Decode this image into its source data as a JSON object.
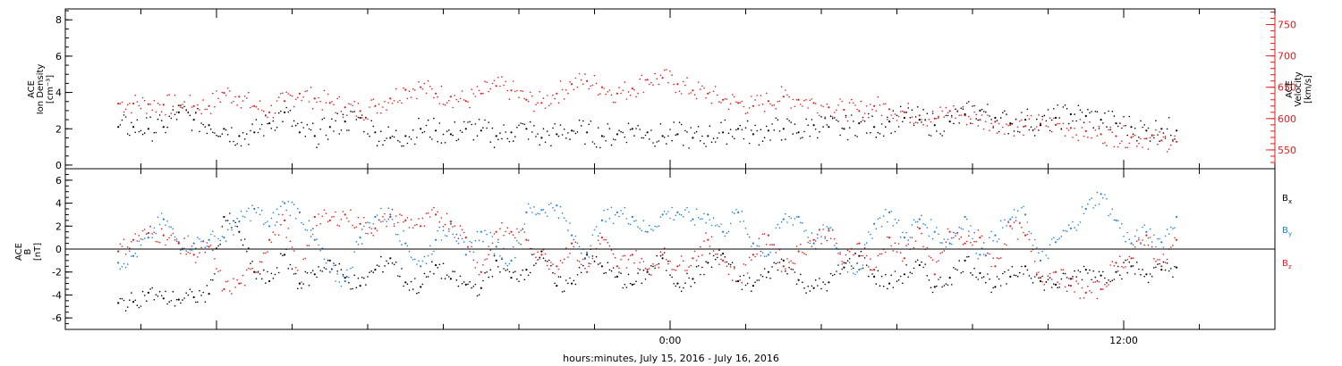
{
  "colors": {
    "axis": "#000000",
    "density": "#000000",
    "velocity": "#e8191c",
    "bx": "#000000",
    "by": "#1e7fd8",
    "bz": "#e8191c"
  },
  "x_axis": {
    "label": "hours:minutes, July 15, 2016 - July 16, 2016",
    "range_hours": [
      -16,
      16
    ],
    "tick_labels": [
      {
        "hour": 0,
        "label": "0:00"
      },
      {
        "hour": 12,
        "label": "12:00"
      }
    ],
    "minor_tick_step_hours": 2
  },
  "chart_data": [
    {
      "type": "scatter",
      "panel": "top",
      "left_axis": {
        "label_line1": "ACE",
        "label_line2": "Ion Density",
        "label_line3": "[cm⁻³]",
        "ylim": [
          -0.2,
          8.6
        ],
        "ticks": [
          0,
          2,
          4,
          6,
          8
        ]
      },
      "right_axis": {
        "label_line1": "ACE",
        "label_line2": "Velocity",
        "label_line3": "[km/s]",
        "ylim": [
          520,
          775
        ],
        "ticks": [
          550,
          600,
          650,
          700,
          750
        ]
      },
      "series": [
        {
          "name": "density",
          "axis": "left",
          "x": [
            -14.6,
            -14.2,
            -13.8,
            -13.4,
            -13.0,
            -12.6,
            -12.2,
            -11.8,
            -11.4,
            -11.0,
            -10.6,
            -10.2,
            -9.8,
            -9.4,
            -9.0,
            -8.6,
            -8.2,
            -7.8,
            -7.4,
            -7.0,
            -6.6,
            -6.2,
            -5.8,
            -5.4,
            -5.0,
            -4.6,
            -4.2,
            -3.8,
            -3.4,
            -3.0,
            -2.6,
            -2.2,
            -1.8,
            -1.4,
            -1.0,
            -0.6,
            -0.2,
            0.2,
            0.6,
            1.0,
            1.4,
            1.8,
            2.2,
            2.6,
            3.0,
            3.4,
            3.8,
            4.2,
            4.6,
            5.0,
            5.4,
            5.8,
            6.2,
            6.6,
            7.0,
            7.4,
            7.8,
            8.2,
            8.6,
            9.0,
            9.4,
            9.8,
            10.2,
            10.6,
            11.0,
            11.4,
            11.8,
            12.2,
            12.6,
            13.0,
            13.4
          ],
          "values": [
            2.1,
            2.1,
            2.0,
            2.1,
            2.9,
            2.5,
            2.2,
            2.0,
            1.6,
            1.8,
            2.3,
            2.9,
            1.8,
            1.6,
            2.1,
            2.4,
            2.6,
            1.8,
            1.5,
            1.6,
            2.0,
            1.9,
            1.7,
            2.0,
            1.9,
            1.6,
            1.8,
            2.0,
            1.5,
            1.7,
            1.9,
            1.8,
            1.6,
            1.7,
            2.0,
            1.8,
            1.6,
            1.7,
            1.5,
            1.6,
            1.8,
            2.0,
            1.7,
            1.9,
            2.0,
            1.8,
            2.2,
            2.1,
            2.0,
            2.3,
            2.1,
            2.4,
            2.6,
            2.5,
            2.2,
            2.4,
            2.8,
            3.0,
            2.6,
            2.3,
            2.5,
            2.2,
            2.6,
            2.8,
            2.7,
            2.5,
            2.3,
            2.1,
            1.9,
            2.0,
            1.9
          ]
        },
        {
          "name": "velocity",
          "axis": "right",
          "x": [
            -14.6,
            -14.2,
            -13.8,
            -13.4,
            -13.0,
            -12.6,
            -12.2,
            -11.8,
            -11.4,
            -11.0,
            -10.6,
            -10.2,
            -9.8,
            -9.4,
            -9.0,
            -8.6,
            -8.2,
            -7.8,
            -7.4,
            -7.0,
            -6.6,
            -6.2,
            -5.8,
            -5.4,
            -5.0,
            -4.6,
            -4.2,
            -3.8,
            -3.4,
            -3.0,
            -2.6,
            -2.2,
            -1.8,
            -1.4,
            -1.0,
            -0.6,
            -0.2,
            0.2,
            0.6,
            1.0,
            1.4,
            1.8,
            2.2,
            2.6,
            3.0,
            3.4,
            3.8,
            4.2,
            4.6,
            5.0,
            5.4,
            5.8,
            6.2,
            6.6,
            7.0,
            7.4,
            7.8,
            8.2,
            8.6,
            9.0,
            9.4,
            9.8,
            10.2,
            10.6,
            11.0,
            11.4,
            11.8,
            12.2,
            12.6,
            13.0,
            13.4
          ],
          "values": [
            624,
            624,
            623,
            622,
            621,
            620,
            620,
            641,
            635,
            620,
            610,
            628,
            640,
            632,
            625,
            618,
            612,
            620,
            632,
            646,
            650,
            640,
            635,
            628,
            640,
            652,
            645,
            630,
            625,
            640,
            655,
            660,
            650,
            640,
            648,
            662,
            665,
            655,
            645,
            640,
            630,
            625,
            620,
            628,
            635,
            630,
            625,
            618,
            614,
            612,
            620,
            615,
            610,
            605,
            600,
            612,
            605,
            598,
            595,
            590,
            588,
            592,
            590,
            585,
            580,
            575,
            572,
            570,
            568,
            565,
            563
          ]
        }
      ]
    },
    {
      "type": "scatter",
      "panel": "bottom",
      "left_axis": {
        "label_line1": "ACE",
        "label_line2": "B",
        "label_line3": "[nT]",
        "ylim": [
          -7,
          7
        ],
        "ticks": [
          -6,
          -4,
          -2,
          0,
          2,
          4,
          6
        ]
      },
      "zero_line": true,
      "series": [
        {
          "name": "B",
          "name_subscript": "x",
          "x": [
            -14.6,
            -14.2,
            -13.8,
            -13.4,
            -13.0,
            -12.6,
            -12.2,
            -11.8,
            -11.4,
            -11.0,
            -10.6,
            -10.2,
            -9.8,
            -9.4,
            -9.0,
            -8.6,
            -8.2,
            -7.8,
            -7.4,
            -7.0,
            -6.6,
            -6.2,
            -5.8,
            -5.4,
            -5.0,
            -4.6,
            -4.2,
            -3.8,
            -3.4,
            -3.0,
            -2.6,
            -2.2,
            -1.8,
            -1.4,
            -1.0,
            -0.6,
            -0.2,
            0.2,
            0.6,
            1.0,
            1.4,
            1.8,
            2.2,
            2.6,
            3.0,
            3.4,
            3.8,
            4.2,
            4.6,
            5.0,
            5.4,
            5.8,
            6.2,
            6.6,
            7.0,
            7.4,
            7.8,
            8.2,
            8.6,
            9.0,
            9.4,
            9.8,
            10.2,
            10.6,
            11.0,
            11.4,
            11.8,
            12.2,
            12.6,
            13.0,
            13.4
          ],
          "values": [
            -4.7,
            -4.6,
            -3.8,
            -4.3,
            -4.4,
            -4.2,
            -3.9,
            2.8,
            1.5,
            -2.0,
            -2.8,
            -0.5,
            -3.0,
            -2.2,
            -1.0,
            -2.5,
            -3.2,
            -1.8,
            -0.8,
            -2.9,
            -3.3,
            -1.4,
            -2.6,
            -3.1,
            -3.4,
            -1.0,
            -2.5,
            -1.8,
            -0.2,
            -3.2,
            -3.0,
            -0.5,
            -1.5,
            -2.4,
            -3.1,
            -2.0,
            -0.8,
            -3.0,
            -2.6,
            -1.2,
            -0.4,
            -2.8,
            -3.2,
            -2.0,
            -1.0,
            -2.7,
            -3.4,
            -2.9,
            -1.6,
            -0.6,
            -2.4,
            -3.0,
            -2.2,
            -1.4,
            -3.3,
            -2.5,
            -1.0,
            -2.1,
            -3.3,
            -2.4,
            -1.5,
            -2.8,
            -3.1,
            -2.6,
            -1.8,
            -2.3,
            -2.0,
            -1.5,
            -2.2,
            -1.8,
            -1.6
          ]
        },
        {
          "name": "B",
          "name_subscript": "y",
          "x": [
            -14.6,
            -14.2,
            -13.8,
            -13.4,
            -13.0,
            -12.6,
            -12.2,
            -11.8,
            -11.4,
            -11.0,
            -10.6,
            -10.2,
            -9.8,
            -9.4,
            -9.0,
            -8.6,
            -8.2,
            -7.8,
            -7.4,
            -7.0,
            -6.6,
            -6.2,
            -5.8,
            -5.4,
            -5.0,
            -4.6,
            -4.2,
            -3.8,
            -3.4,
            -3.0,
            -2.6,
            -2.2,
            -1.8,
            -1.4,
            -1.0,
            -0.6,
            -0.2,
            0.2,
            0.6,
            1.0,
            1.4,
            1.8,
            2.2,
            2.6,
            3.0,
            3.4,
            3.8,
            4.2,
            4.6,
            5.0,
            5.4,
            5.8,
            6.2,
            6.6,
            7.0,
            7.4,
            7.8,
            8.2,
            8.6,
            9.0,
            9.4,
            9.8,
            10.2,
            10.6,
            11.0,
            11.4,
            11.8,
            12.2,
            12.6,
            13.0,
            13.4
          ],
          "values": [
            -1.2,
            -0.6,
            1.0,
            2.6,
            0.6,
            0.5,
            0.8,
            1.0,
            2.4,
            3.5,
            2.0,
            4.0,
            3.2,
            0.8,
            -2.0,
            -2.8,
            1.0,
            2.8,
            3.0,
            0.5,
            -1.5,
            0.8,
            2.2,
            -0.5,
            1.5,
            0.2,
            -1.0,
            3.2,
            3.4,
            3.8,
            1.2,
            -0.3,
            2.5,
            3.2,
            2.8,
            1.5,
            3.0,
            3.2,
            2.6,
            3.0,
            1.5,
            3.2,
            0.5,
            -0.5,
            2.6,
            2.8,
            0.5,
            1.8,
            -1.2,
            -1.8,
            2.2,
            3.2,
            1.0,
            2.6,
            1.5,
            0.5,
            2.8,
            -0.5,
            1.2,
            2.6,
            3.0,
            -1.0,
            0.6,
            1.8,
            3.5,
            4.8,
            2.5,
            0.5,
            1.5,
            0.6,
            2.8
          ]
        },
        {
          "name": "B",
          "name_subscript": "z",
          "x": [
            -14.6,
            -14.2,
            -13.8,
            -13.4,
            -13.0,
            -12.6,
            -12.2,
            -11.8,
            -11.4,
            -11.0,
            -10.6,
            -10.2,
            -9.8,
            -9.4,
            -9.0,
            -8.6,
            -8.2,
            -7.8,
            -7.4,
            -7.0,
            -6.6,
            -6.2,
            -5.8,
            -5.4,
            -5.0,
            -4.6,
            -4.2,
            -3.8,
            -3.4,
            -3.0,
            -2.6,
            -2.2,
            -1.8,
            -1.4,
            -1.0,
            -0.6,
            -0.2,
            0.2,
            0.6,
            1.0,
            1.4,
            1.8,
            2.2,
            2.6,
            3.0,
            3.4,
            3.8,
            4.2,
            4.6,
            5.0,
            5.4,
            5.8,
            6.2,
            6.6,
            7.0,
            7.4,
            7.8,
            8.2,
            8.6,
            9.0,
            9.4,
            9.8,
            10.2,
            10.6,
            11.0,
            11.4,
            11.8,
            12.2,
            12.6,
            13.0,
            13.4
          ],
          "values": [
            -0.2,
            0.8,
            1.4,
            1.2,
            0.5,
            -0.5,
            0.2,
            -3.5,
            -3.0,
            -2.0,
            0.8,
            2.5,
            -3.0,
            2.8,
            2.5,
            3.0,
            2.2,
            1.8,
            2.8,
            2.5,
            2.0,
            3.0,
            2.4,
            1.0,
            -2.0,
            1.5,
            1.5,
            0.8,
            -0.5,
            -1.5,
            0.5,
            -2.0,
            1.0,
            -1.5,
            -0.5,
            -1.8,
            -0.5,
            -1.5,
            -0.8,
            0.8,
            -1.0,
            -2.8,
            -0.5,
            1.2,
            -1.5,
            -0.2,
            0.8,
            1.6,
            -1.2,
            0.5,
            -1.8,
            1.0,
            -0.8,
            1.8,
            -2.2,
            1.5,
            0.5,
            1.0,
            -1.5,
            2.0,
            1.2,
            -2.5,
            -2.0,
            -3.2,
            -3.8,
            -3.5,
            -1.2,
            -0.8,
            1.2,
            -1.5,
            0.8
          ]
        }
      ]
    }
  ]
}
